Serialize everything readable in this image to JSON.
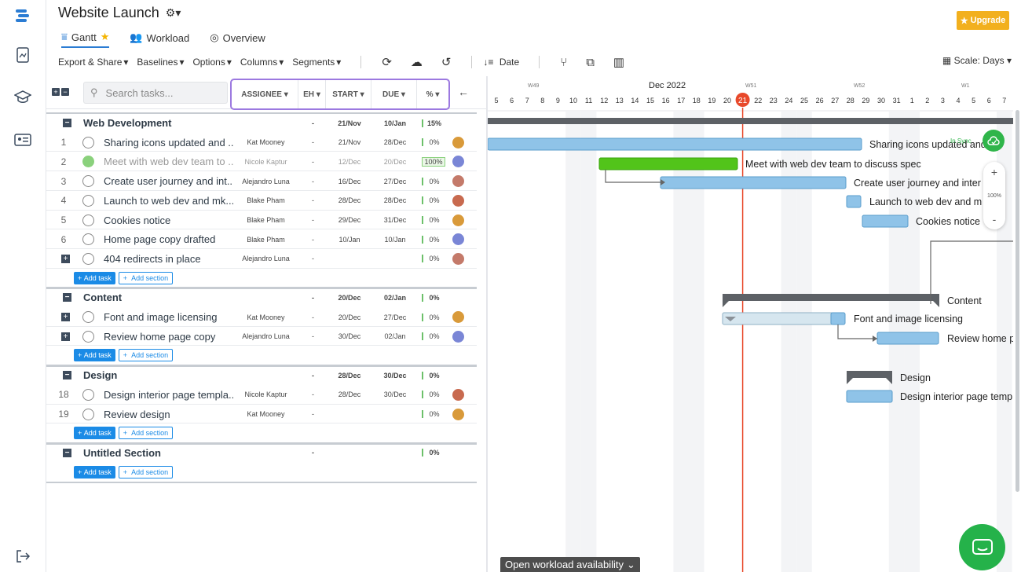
{
  "project": {
    "title": "Website Launch"
  },
  "tabs": [
    {
      "label": "Gantt",
      "icon": "gantt-icon"
    },
    {
      "label": "Workload",
      "icon": "users-icon"
    },
    {
      "label": "Overview",
      "icon": "overview-icon"
    }
  ],
  "upgrade_label": "Upgrade",
  "toolbar": {
    "export_share": "Export & Share",
    "baselines": "Baselines",
    "options": "Options",
    "columns": "Columns",
    "segments": "Segments",
    "sort_date": "Date",
    "scale": "Scale: Days"
  },
  "search": {
    "placeholder": "Search tasks..."
  },
  "columns": {
    "assignee": "ASSIGNEE",
    "eh": "EH",
    "start": "START",
    "due": "DUE",
    "pct": "%"
  },
  "rows": [
    {
      "type": "section",
      "name": "Web Development",
      "eh": "-",
      "start": "21/Nov",
      "due": "10/Jan",
      "pct": "15%"
    },
    {
      "type": "task",
      "num": "1",
      "name": "Sharing icons updated and ...",
      "assignee": "Kat Mooney",
      "eh": "-",
      "start": "21/Nov",
      "due": "28/Dec",
      "pct": "0%"
    },
    {
      "type": "task",
      "num": "2",
      "name": "Meet with web dev team to ...",
      "assignee": "Nicole Kaptur",
      "eh": "-",
      "start": "12/Dec",
      "due": "20/Dec",
      "pct": "100%",
      "done": true
    },
    {
      "type": "task",
      "num": "3",
      "name": "Create user journey and int...",
      "assignee": "Alejandro Luna",
      "eh": "-",
      "start": "16/Dec",
      "due": "27/Dec",
      "pct": "0%"
    },
    {
      "type": "task",
      "num": "4",
      "name": "Launch to web dev and mk...",
      "assignee": "Blake Pham",
      "eh": "-",
      "start": "28/Dec",
      "due": "28/Dec",
      "pct": "0%"
    },
    {
      "type": "task",
      "num": "5",
      "name": "Cookies notice",
      "assignee": "Blake Pham",
      "eh": "-",
      "start": "29/Dec",
      "due": "31/Dec",
      "pct": "0%"
    },
    {
      "type": "task",
      "num": "6",
      "name": "Home page copy drafted",
      "assignee": "Blake Pham",
      "eh": "-",
      "start": "10/Jan",
      "due": "10/Jan",
      "pct": "0%"
    },
    {
      "type": "task",
      "num": "",
      "name": "404 redirects in place",
      "assignee": "Alejandro Luna",
      "eh": "-",
      "start": "",
      "due": "",
      "pct": "0%"
    },
    {
      "type": "section",
      "name": "Content",
      "eh": "-",
      "start": "20/Dec",
      "due": "02/Jan",
      "pct": "0%"
    },
    {
      "type": "task",
      "num": "",
      "name": "Font and image licensing",
      "assignee": "Kat Mooney",
      "eh": "-",
      "start": "20/Dec",
      "due": "27/Dec",
      "pct": "0%"
    },
    {
      "type": "task",
      "num": "",
      "name": "Review home page copy",
      "assignee": "Alejandro Luna",
      "eh": "-",
      "start": "30/Dec",
      "due": "02/Jan",
      "pct": "0%"
    },
    {
      "type": "section",
      "name": "Design",
      "eh": "-",
      "start": "28/Dec",
      "due": "30/Dec",
      "pct": "0%"
    },
    {
      "type": "task",
      "num": "18",
      "name": "Design interior page templa...",
      "assignee": "Nicole Kaptur",
      "eh": "-",
      "start": "28/Dec",
      "due": "30/Dec",
      "pct": "0%"
    },
    {
      "type": "task",
      "num": "19",
      "name": "Review design",
      "assignee": "Kat Mooney",
      "eh": "-",
      "start": "",
      "due": "",
      "pct": "0%"
    },
    {
      "type": "section",
      "name": "Untitled Section",
      "eh": "-",
      "start": "",
      "due": "",
      "pct": "0%"
    }
  ],
  "add_task": "Add task",
  "add_section": "Add section",
  "timeline": {
    "month": "Dec 2022",
    "weeks": [
      "W49",
      "W51",
      "W52",
      "W1"
    ],
    "days": [
      "5",
      "6",
      "7",
      "8",
      "9",
      "10",
      "11",
      "12",
      "13",
      "14",
      "15",
      "16",
      "17",
      "18",
      "19",
      "20",
      "21",
      "22",
      "23",
      "24",
      "25",
      "26",
      "27",
      "28",
      "29",
      "30",
      "31",
      "1",
      "2",
      "3",
      "4",
      "5",
      "6",
      "7"
    ],
    "today": "21",
    "bar_labels": [
      "Sharing icons updated and",
      "Meet with web dev team to discuss spec",
      "Create user journey and inter",
      "Launch to web dev and m",
      "Cookies notice",
      "Content",
      "Font and image licensing",
      "Review home p",
      "Design",
      "Design interior page temp"
    ],
    "sync": "In Sync",
    "zoom": "100%"
  },
  "footer": {
    "workload": "Open workload availability"
  }
}
